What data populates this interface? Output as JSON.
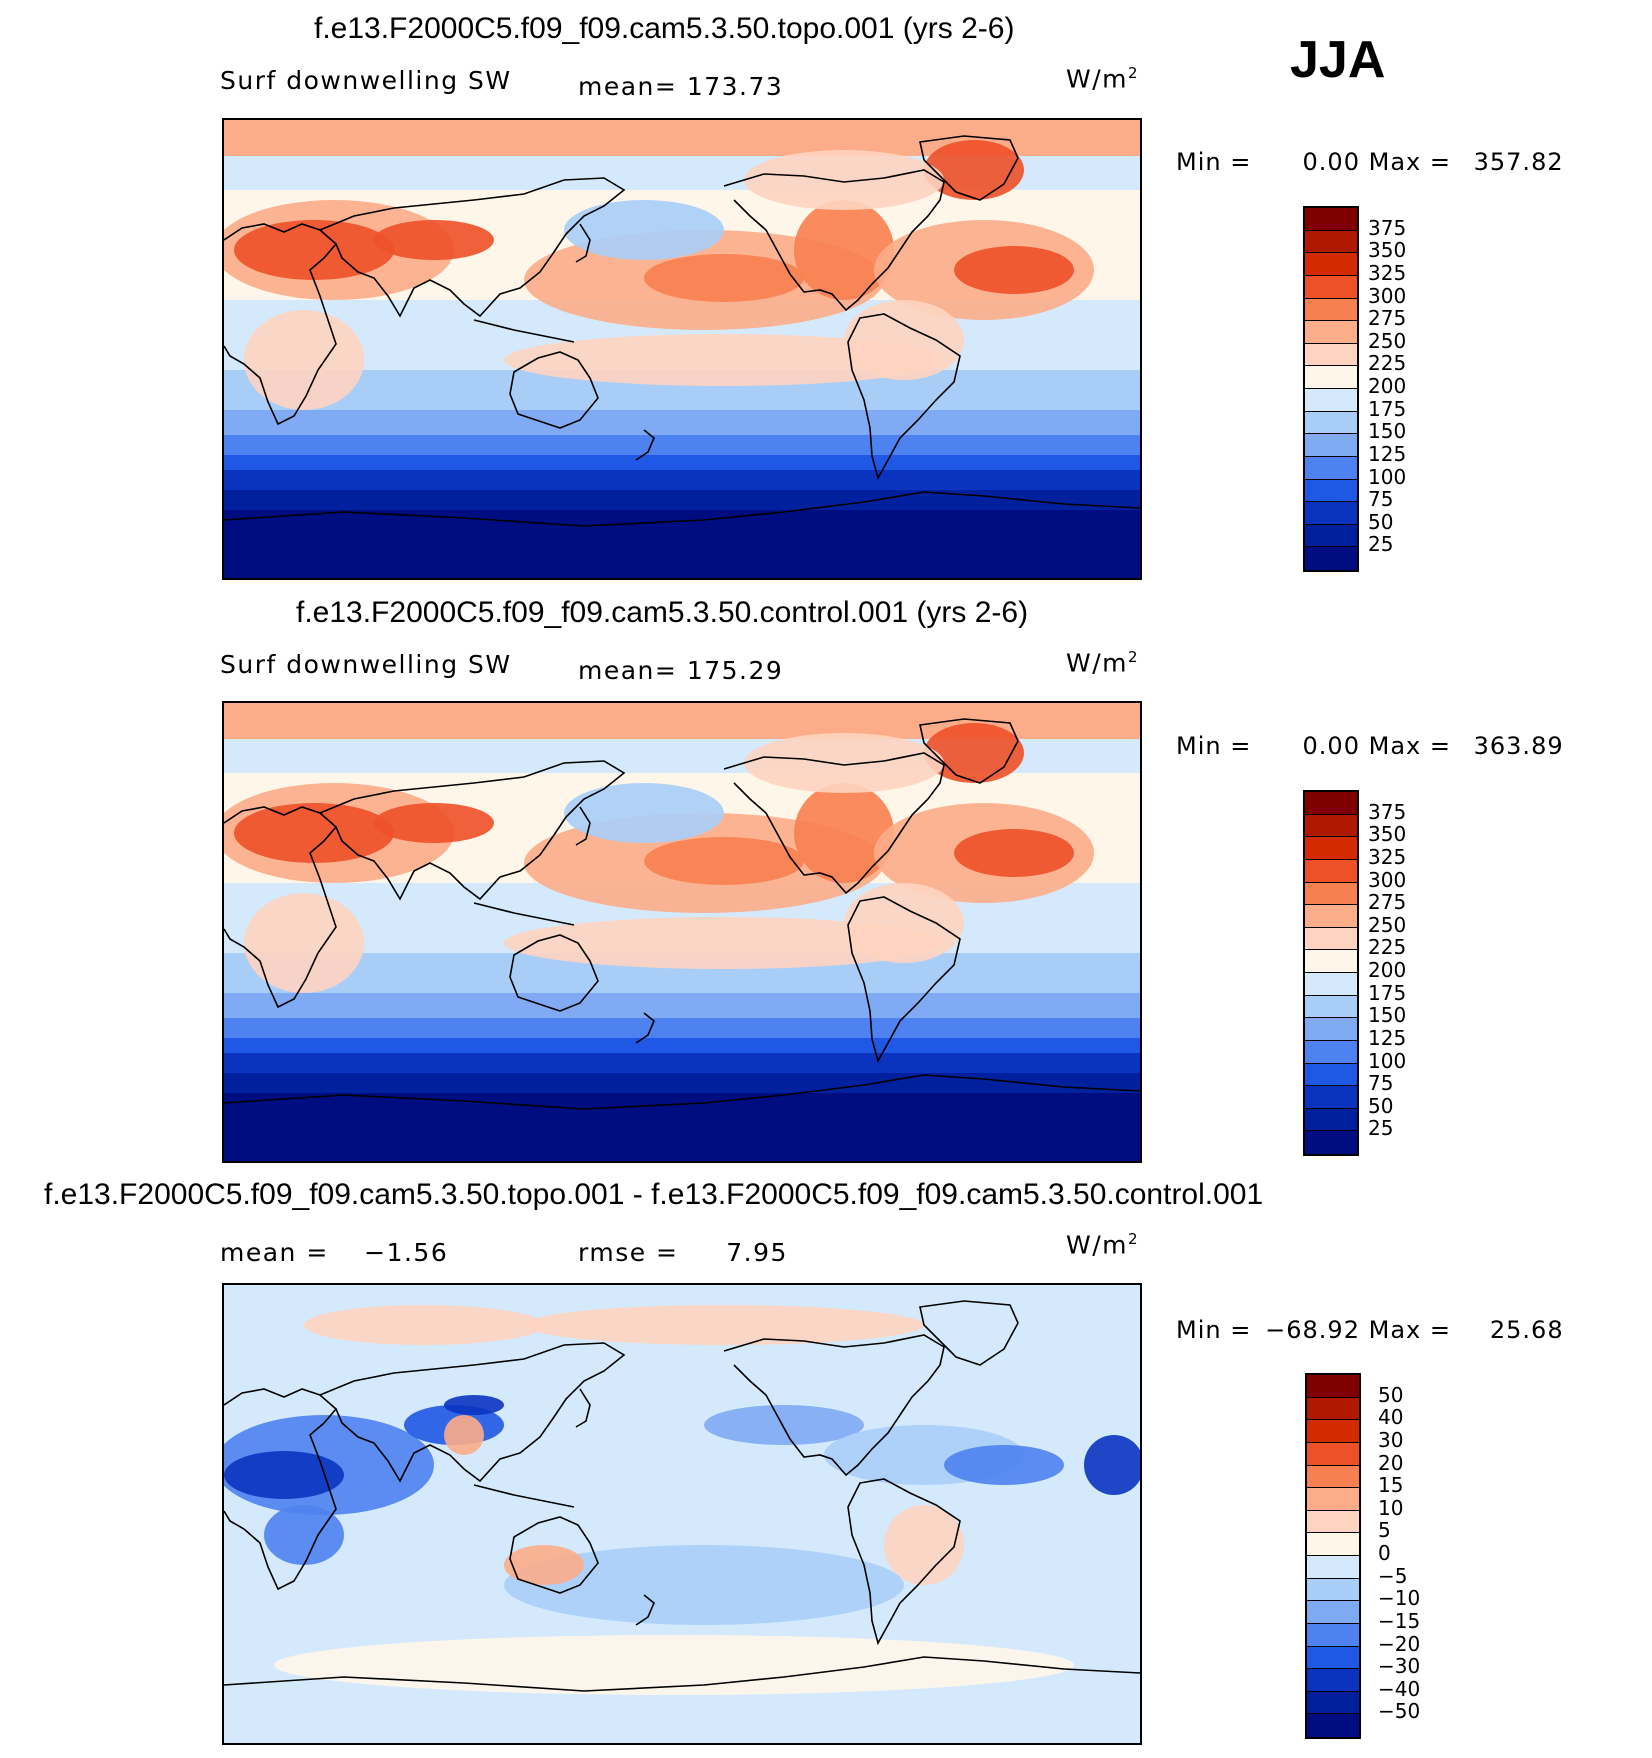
{
  "season": "JJA",
  "chart_data": [
    {
      "type": "heatmap",
      "title": "f.e13.F2000C5.f09_f09.cam5.3.50.topo.001 (yrs 2-6)",
      "variable": "Surf downwelling SW",
      "stat_left_label": "mean=",
      "stat_left_value": "173.73",
      "units_base": "W/m",
      "units_exp": "2",
      "min_label": "Min =",
      "min": "0.00",
      "max_label": "Max =",
      "max": "357.82",
      "colorbar_ticks": [
        "375",
        "350",
        "325",
        "300",
        "275",
        "250",
        "225",
        "200",
        "175",
        "150",
        "125",
        "100",
        "75",
        "50",
        "25"
      ],
      "colorbar_colors": [
        "#800000",
        "#b01800",
        "#d42a00",
        "#ee5028",
        "#f88050",
        "#fcac88",
        "#fed4c0",
        "#fff6ea",
        "#d4eafc",
        "#a8cef8",
        "#80aaf4",
        "#4d82f0",
        "#1f58e4",
        "#0a34c0",
        "#00209e",
        "#000d80"
      ]
    },
    {
      "type": "heatmap",
      "title": "f.e13.F2000C5.f09_f09.cam5.3.50.control.001 (yrs 2-6)",
      "variable": "Surf downwelling SW",
      "stat_left_label": "mean=",
      "stat_left_value": "175.29",
      "units_base": "W/m",
      "units_exp": "2",
      "min_label": "Min =",
      "min": "0.00",
      "max_label": "Max =",
      "max": "363.89",
      "colorbar_ticks": [
        "375",
        "350",
        "325",
        "300",
        "275",
        "250",
        "225",
        "200",
        "175",
        "150",
        "125",
        "100",
        "75",
        "50",
        "25"
      ],
      "colorbar_colors": [
        "#800000",
        "#b01800",
        "#d42a00",
        "#ee5028",
        "#f88050",
        "#fcac88",
        "#fed4c0",
        "#fff6ea",
        "#d4eafc",
        "#a8cef8",
        "#80aaf4",
        "#4d82f0",
        "#1f58e4",
        "#0a34c0",
        "#00209e",
        "#000d80"
      ]
    },
    {
      "type": "heatmap",
      "title": "f.e13.F2000C5.f09_f09.cam5.3.50.topo.001 - f.e13.F2000C5.f09_f09.cam5.3.50.control.001",
      "stat_left_label": "mean =",
      "stat_left_value": "−1.56",
      "stat_right_label": "rmse =",
      "stat_right_value": "7.95",
      "units_base": "W/m",
      "units_exp": "2",
      "min_label": "Min =",
      "min": "−68.92",
      "max_label": "Max =",
      "max": "25.68",
      "colorbar_ticks": [
        "50",
        "40",
        "30",
        "20",
        "15",
        "10",
        "5",
        "0",
        "−5",
        "−10",
        "−15",
        "−20",
        "−30",
        "−40",
        "−50"
      ],
      "colorbar_colors": [
        "#800000",
        "#b01800",
        "#d42a00",
        "#ee5028",
        "#f88050",
        "#fcac88",
        "#fed4c0",
        "#fff6ea",
        "#d4eafc",
        "#a8cef8",
        "#80aaf4",
        "#4d82f0",
        "#1f58e4",
        "#0a34c0",
        "#00209e",
        "#000d80"
      ]
    }
  ]
}
